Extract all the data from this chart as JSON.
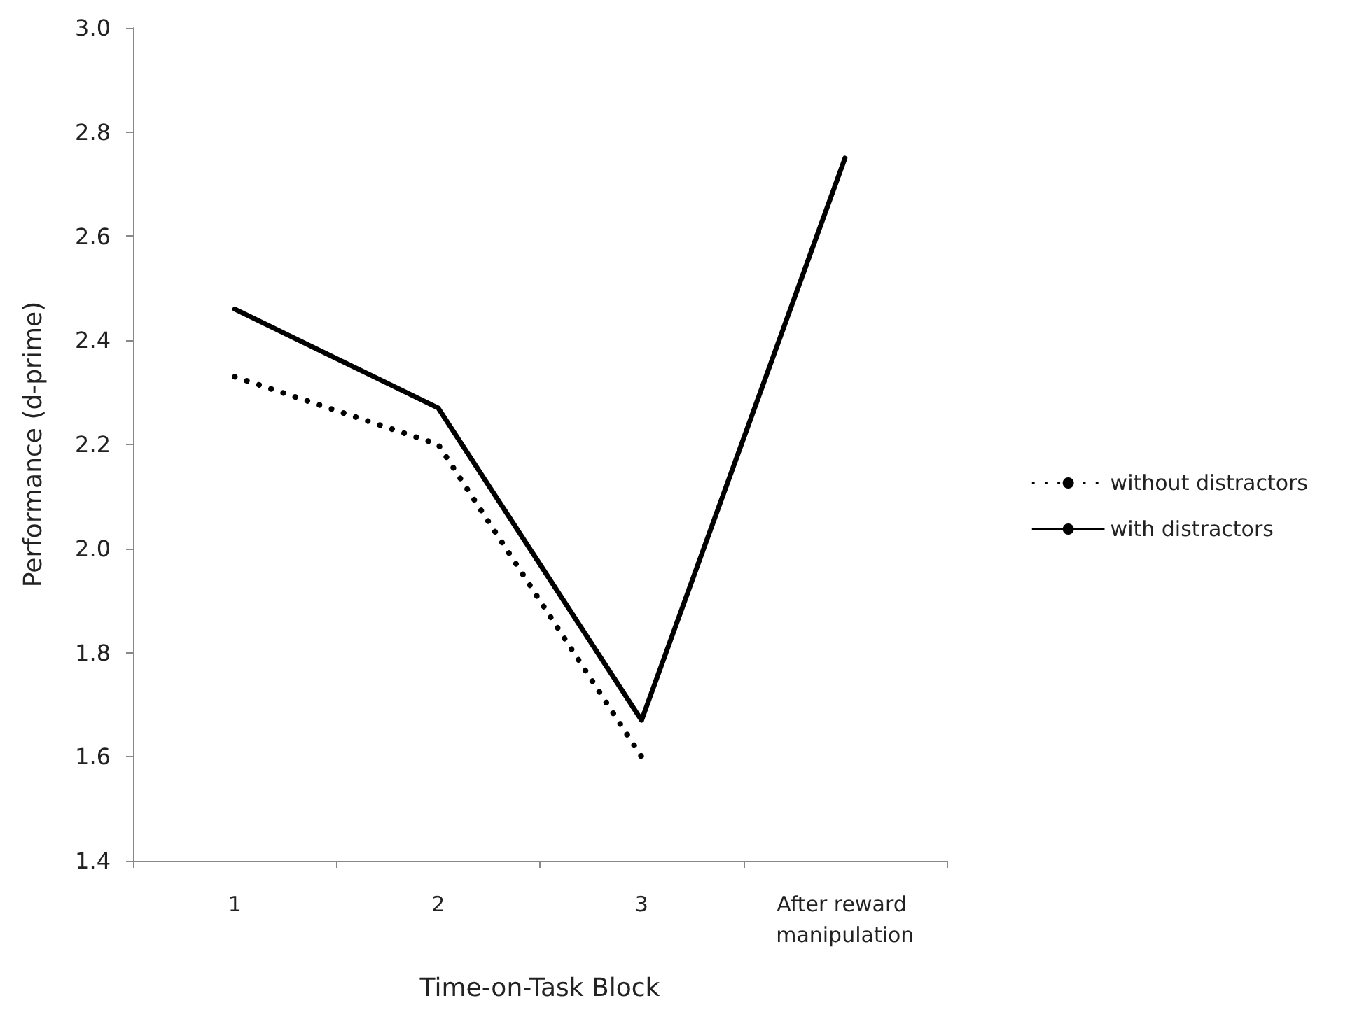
{
  "chart_data": {
    "type": "line",
    "xlabel": "Time-on-Task Block",
    "ylabel": "Performance (d-prime)",
    "categories": [
      "1",
      "2",
      "3",
      "After reward manipulation"
    ],
    "series": [
      {
        "name": "without distractors",
        "color": "#000000",
        "line_style": "dotted",
        "values": [
          2.33,
          2.2,
          1.6,
          null
        ]
      },
      {
        "name": "with distractors",
        "color": "#000000",
        "line_style": "solid",
        "values": [
          2.46,
          2.27,
          1.67,
          2.75
        ]
      }
    ],
    "ylim": [
      1.4,
      3.0
    ],
    "yticks": [
      1.4,
      1.6,
      1.8,
      {
        "value": 2,
        "label": "2.0"
      },
      2.2,
      2.4,
      2.6,
      2.8,
      {
        "value": 3,
        "label": "3.0"
      }
    ],
    "grid": false,
    "legend": "right",
    "marker": "none"
  }
}
